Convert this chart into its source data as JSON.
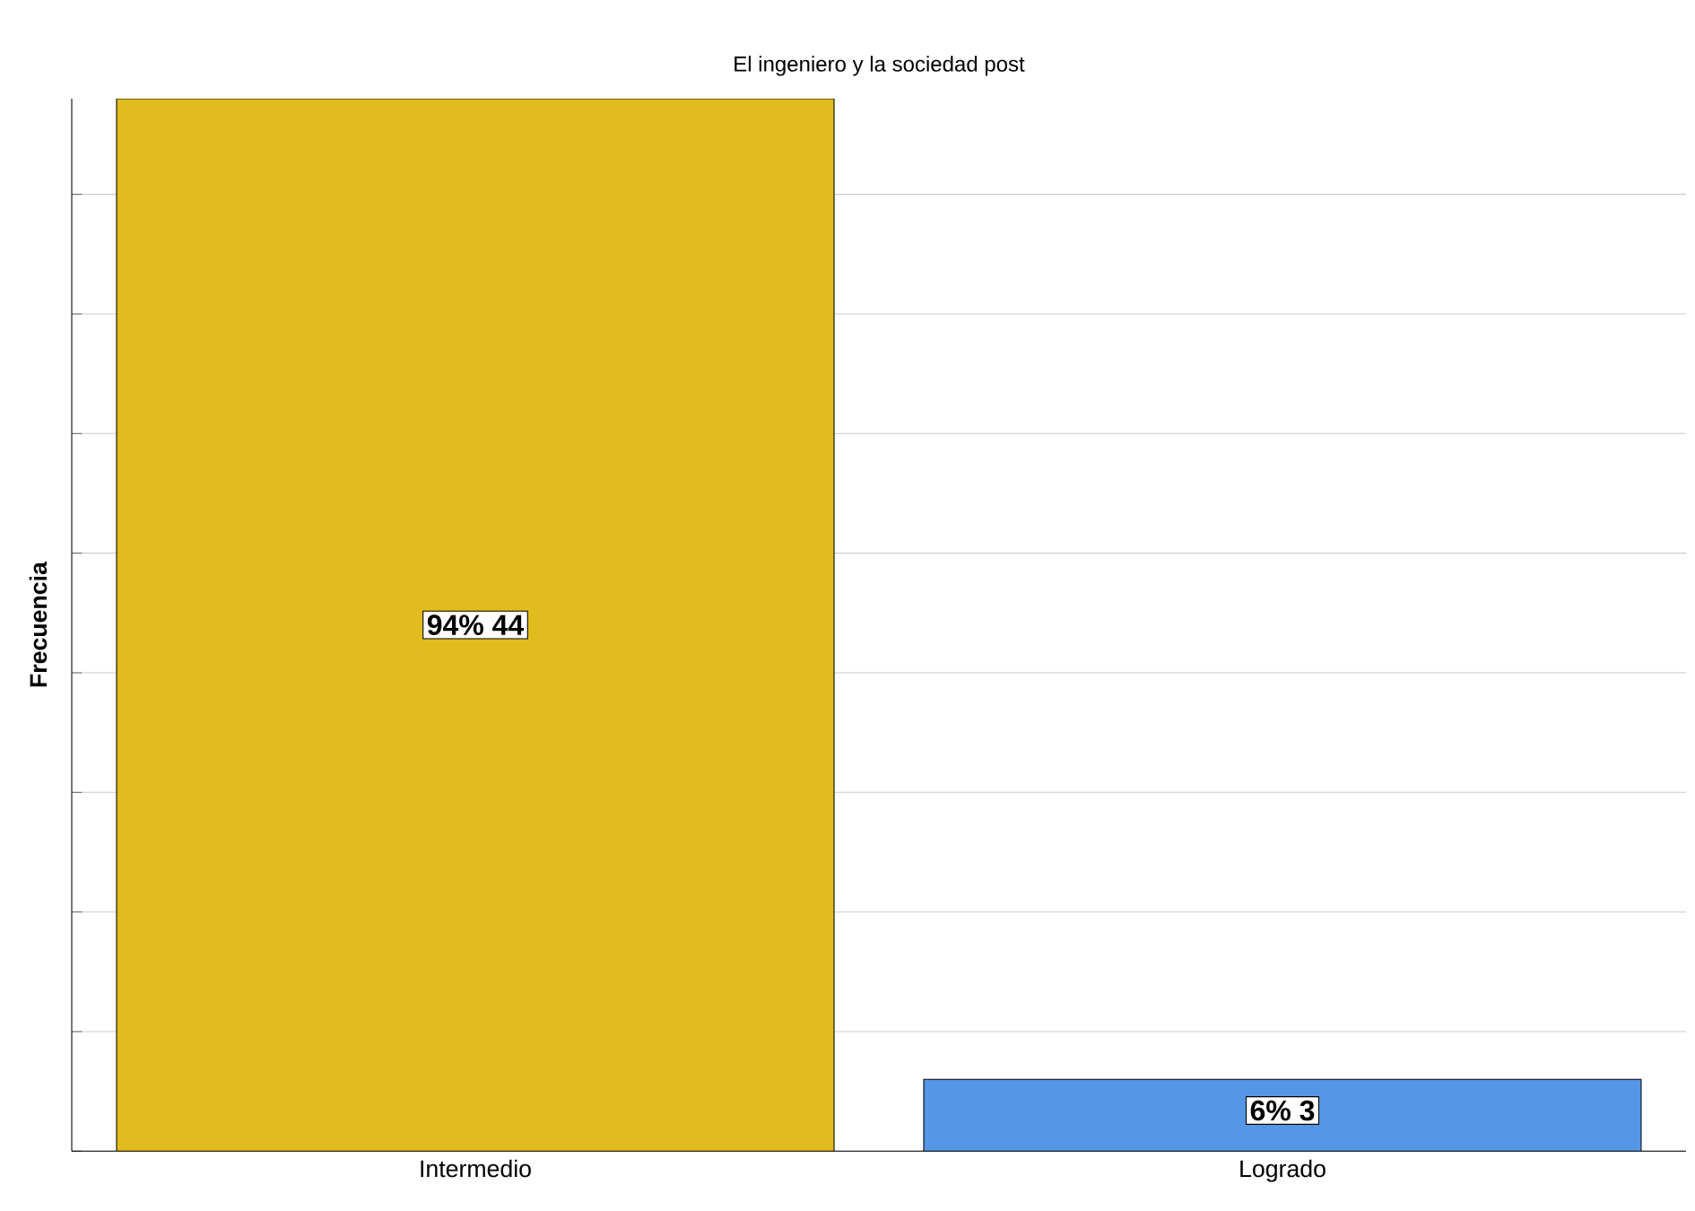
{
  "chart_data": {
    "type": "bar",
    "title": "El ingeniero y la sociedad post",
    "ylabel": "Frecuencia",
    "categories": [
      "Intermedio",
      "Logrado"
    ],
    "values": [
      44,
      3
    ],
    "colors": [
      "#e0bc1e",
      "#5596e6"
    ],
    "value_labels": [
      "94% 44",
      "6% 3"
    ],
    "grid": "y",
    "tick_labels": "x"
  }
}
